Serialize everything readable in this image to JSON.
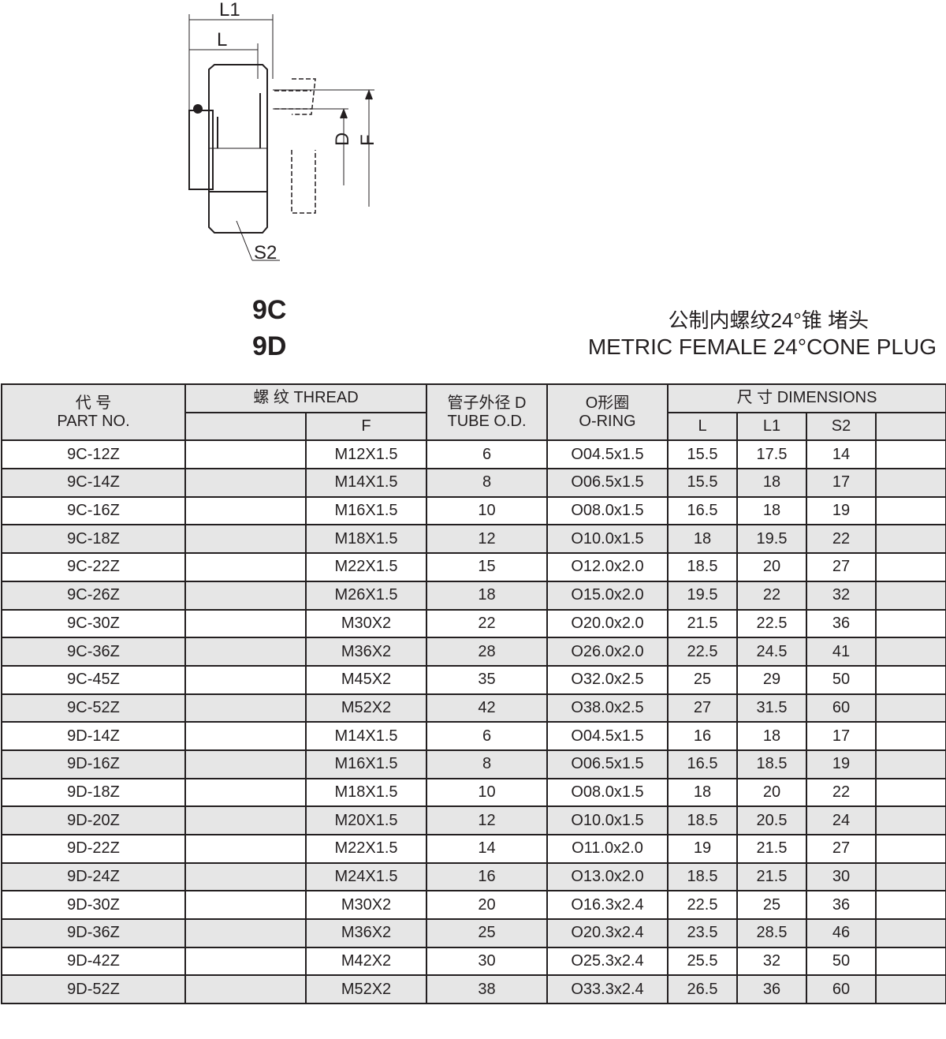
{
  "drawing": {
    "labels": {
      "l1": "L1",
      "l": "L",
      "d": "D",
      "f": "F",
      "s2": "S2"
    }
  },
  "codes": [
    "9C",
    "9D"
  ],
  "title": {
    "cn": "公制内螺纹24°锥 堵头",
    "en": "METRIC FEMALE 24°CONE PLUG"
  },
  "table": {
    "headers": {
      "part_cn": "代 号",
      "part_en": "PART NO.",
      "thread": "螺 纹 THREAD",
      "thread_f": "F",
      "tube_cn": "管子外径 D",
      "tube_en": "TUBE O.D.",
      "oring_cn": "O形圈",
      "oring_en": "O-RING",
      "dims": "尺 寸 DIMENSIONS",
      "l": "L",
      "l1": "L1",
      "s2": "S2"
    },
    "rows": [
      [
        "9C-12Z",
        "",
        "M12X1.5",
        "6",
        "O04.5x1.5",
        "15.5",
        "17.5",
        "14",
        ""
      ],
      [
        "9C-14Z",
        "",
        "M14X1.5",
        "8",
        "O06.5x1.5",
        "15.5",
        "18",
        "17",
        ""
      ],
      [
        "9C-16Z",
        "",
        "M16X1.5",
        "10",
        "O08.0x1.5",
        "16.5",
        "18",
        "19",
        ""
      ],
      [
        "9C-18Z",
        "",
        "M18X1.5",
        "12",
        "O10.0x1.5",
        "18",
        "19.5",
        "22",
        ""
      ],
      [
        "9C-22Z",
        "",
        "M22X1.5",
        "15",
        "O12.0x2.0",
        "18.5",
        "20",
        "27",
        ""
      ],
      [
        "9C-26Z",
        "",
        "M26X1.5",
        "18",
        "O15.0x2.0",
        "19.5",
        "22",
        "32",
        ""
      ],
      [
        "9C-30Z",
        "",
        "M30X2",
        "22",
        "O20.0x2.0",
        "21.5",
        "22.5",
        "36",
        ""
      ],
      [
        "9C-36Z",
        "",
        "M36X2",
        "28",
        "O26.0x2.0",
        "22.5",
        "24.5",
        "41",
        ""
      ],
      [
        "9C-45Z",
        "",
        "M45X2",
        "35",
        "O32.0x2.5",
        "25",
        "29",
        "50",
        ""
      ],
      [
        "9C-52Z",
        "",
        "M52X2",
        "42",
        "O38.0x2.5",
        "27",
        "31.5",
        "60",
        ""
      ],
      [
        "9D-14Z",
        "",
        "M14X1.5",
        "6",
        "O04.5x1.5",
        "16",
        "18",
        "17",
        ""
      ],
      [
        "9D-16Z",
        "",
        "M16X1.5",
        "8",
        "O06.5x1.5",
        "16.5",
        "18.5",
        "19",
        ""
      ],
      [
        "9D-18Z",
        "",
        "M18X1.5",
        "10",
        "O08.0x1.5",
        "18",
        "20",
        "22",
        ""
      ],
      [
        "9D-20Z",
        "",
        "M20X1.5",
        "12",
        "O10.0x1.5",
        "18.5",
        "20.5",
        "24",
        ""
      ],
      [
        "9D-22Z",
        "",
        "M22X1.5",
        "14",
        "O11.0x2.0",
        "19",
        "21.5",
        "27",
        ""
      ],
      [
        "9D-24Z",
        "",
        "M24X1.5",
        "16",
        "O13.0x2.0",
        "18.5",
        "21.5",
        "30",
        ""
      ],
      [
        "9D-30Z",
        "",
        "M30X2",
        "20",
        "O16.3x2.4",
        "22.5",
        "25",
        "36",
        ""
      ],
      [
        "9D-36Z",
        "",
        "M36X2",
        "25",
        "O20.3x2.4",
        "23.5",
        "28.5",
        "46",
        ""
      ],
      [
        "9D-42Z",
        "",
        "M42X2",
        "30",
        "O25.3x2.4",
        "25.5",
        "32",
        "50",
        ""
      ],
      [
        "9D-52Z",
        "",
        "M52X2",
        "38",
        "O33.3x2.4",
        "26.5",
        "36",
        "60",
        ""
      ]
    ]
  }
}
